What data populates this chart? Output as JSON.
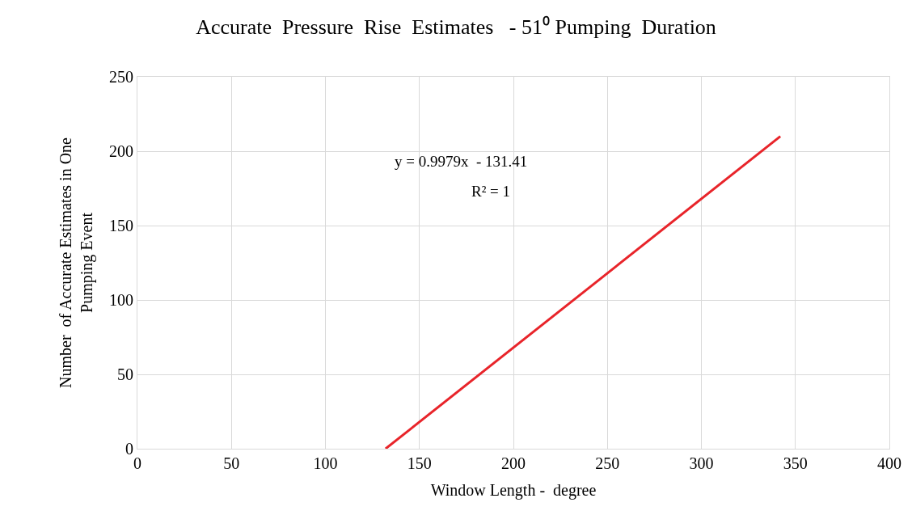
{
  "chart_data": {
    "type": "line",
    "title": "Accurate  Pressure  Rise  Estimates   - 51⁰ Pumping  Duration",
    "xlabel": "Window Length -  degree",
    "ylabel": "Number  of Accurate Estimates in One\nPumping Event",
    "x": [
      132,
      342
    ],
    "series": [
      {
        "color": "#e8242a",
        "values": [
          0,
          210
        ]
      }
    ],
    "annotations": [
      "y = 0.9979x  - 131.41",
      "R² = 1"
    ],
    "xlim": [
      0,
      400
    ],
    "xticks": [
      0,
      50,
      100,
      150,
      200,
      250,
      300,
      350,
      400
    ],
    "ylim": [
      0,
      250
    ],
    "yticks": [
      0,
      50,
      100,
      150,
      200,
      250
    ],
    "grid": true,
    "marker": "none",
    "line_style": "solid"
  }
}
